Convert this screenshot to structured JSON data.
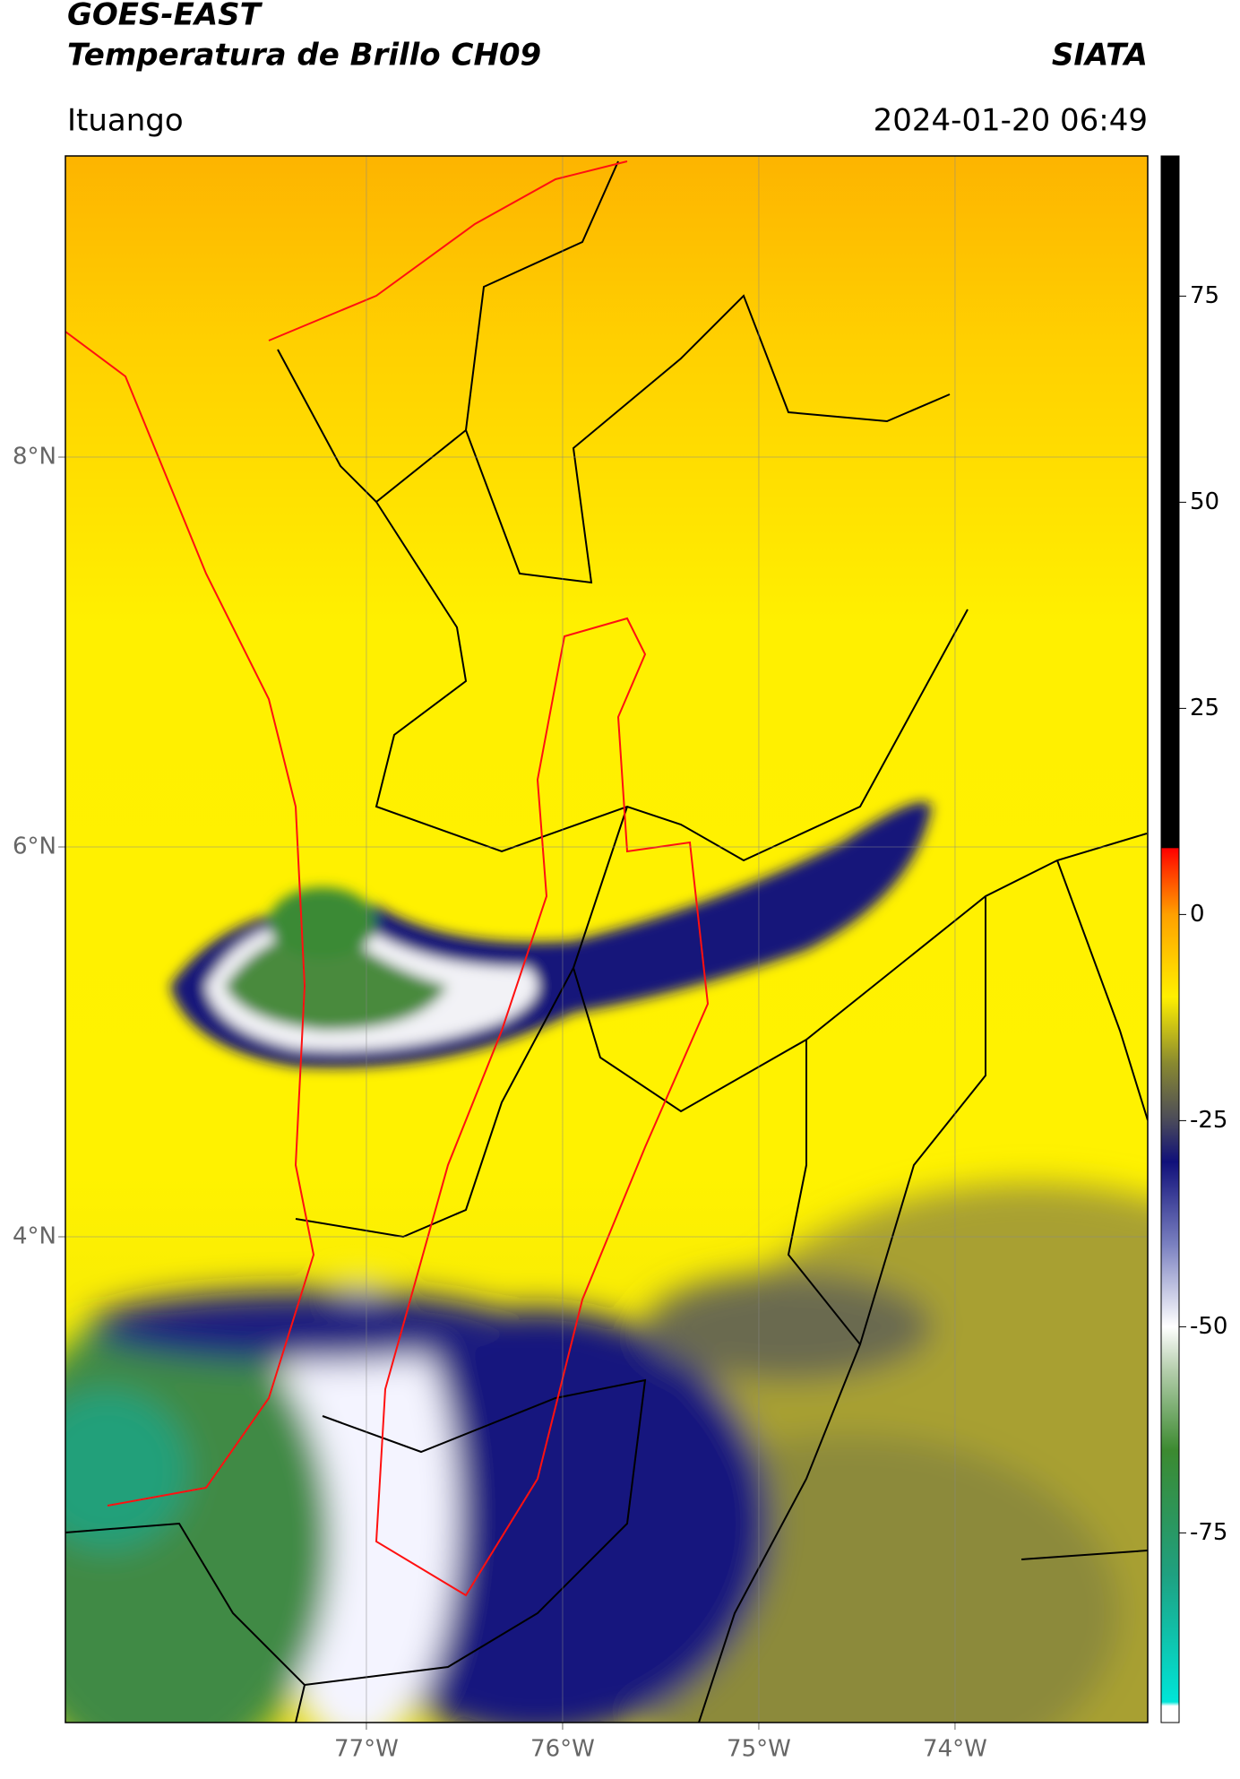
{
  "header": {
    "title": "GOES-EAST",
    "subtitle": "Temperatura de Brillo CH09",
    "org": "SIATA",
    "location": "Ituango",
    "datetime": "2024-01-20 06:49"
  },
  "map": {
    "latlim": [
      1.508,
      9.545
    ],
    "lonlim": [
      -78.534,
      -73.018
    ],
    "latticks": [
      {
        "value": 8,
        "label": "8°N"
      },
      {
        "value": 6,
        "label": "6°N"
      },
      {
        "value": 4,
        "label": "4°N"
      }
    ],
    "lonticks": [
      {
        "value": -77,
        "label": "77°W"
      },
      {
        "value": -76,
        "label": "76°W"
      },
      {
        "value": -75,
        "label": "75°W"
      },
      {
        "value": -74,
        "label": "74°W"
      }
    ],
    "grid": true
  },
  "colorbar": {
    "lim": [
      -98,
      92
    ],
    "ticks": [
      75,
      50,
      25,
      0,
      -25,
      -50,
      -75
    ],
    "colors": [
      {
        "value": -98,
        "color": "#ffffff"
      },
      {
        "value": -96,
        "color": "#ffffff"
      },
      {
        "value": -95.5,
        "color": "#00e5d8"
      },
      {
        "value": -80,
        "color": "#1fa080"
      },
      {
        "value": -65,
        "color": "#3c8a30"
      },
      {
        "value": -55,
        "color": "#b8d0b0"
      },
      {
        "value": -50,
        "color": "#ffffff"
      },
      {
        "value": -40,
        "color": "#7a80c0"
      },
      {
        "value": -30,
        "color": "#10107a"
      },
      {
        "value": -25,
        "color": "#4a4a5a"
      },
      {
        "value": -18,
        "color": "#8a8a30"
      },
      {
        "value": -10,
        "color": "#fff000"
      },
      {
        "value": 0,
        "color": "#ffa000"
      },
      {
        "value": 5,
        "color": "#ff4000"
      },
      {
        "value": 8,
        "color": "#ff0000"
      },
      {
        "value": 8.1,
        "color": "#000000"
      },
      {
        "value": 92,
        "color": "#000000"
      }
    ]
  }
}
